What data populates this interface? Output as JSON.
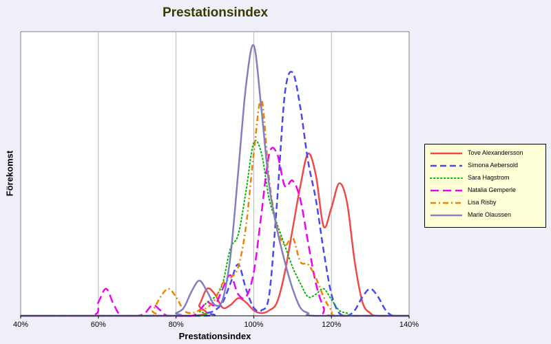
{
  "chart_data": {
    "type": "line",
    "title": "Prestationsindex",
    "xlabel": "Prestationsindex",
    "ylabel": "Förekomst",
    "xlim": [
      40,
      140
    ],
    "ylim": [
      0,
      1.0
    ],
    "x_ticks": [
      "40%",
      "60%",
      "80%",
      "100%",
      "120%",
      "140%"
    ],
    "x_tick_values": [
      40,
      60,
      80,
      100,
      120,
      140
    ],
    "grid": "vertical",
    "legend_position": "right",
    "series": [
      {
        "name": "Tove Alexandersson",
        "color": "#f04848",
        "dash": "solid",
        "points": [
          [
            40,
            0
          ],
          [
            84,
            0
          ],
          [
            86,
            0.04
          ],
          [
            88,
            0.1
          ],
          [
            90,
            0.08
          ],
          [
            92,
            0.03
          ],
          [
            94,
            0.04
          ],
          [
            96,
            0.065
          ],
          [
            98,
            0.05
          ],
          [
            100,
            0.02
          ],
          [
            102,
            0.01
          ],
          [
            104,
            0.02
          ],
          [
            106,
            0.05
          ],
          [
            108,
            0.16
          ],
          [
            110,
            0.32
          ],
          [
            112,
            0.48
          ],
          [
            114,
            0.6
          ],
          [
            116,
            0.52
          ],
          [
            118,
            0.33
          ],
          [
            120,
            0.4
          ],
          [
            122,
            0.49
          ],
          [
            124,
            0.42
          ],
          [
            126,
            0.2
          ],
          [
            128,
            0.05
          ],
          [
            130,
            0.01
          ],
          [
            132,
            0
          ],
          [
            140,
            0
          ]
        ]
      },
      {
        "name": "Simona Aebersold",
        "color": "#4848f0",
        "dash": "dashed",
        "points": [
          [
            40,
            0
          ],
          [
            86,
            0
          ],
          [
            88,
            0.01
          ],
          [
            90,
            0.02
          ],
          [
            92,
            0.05
          ],
          [
            94,
            0.12
          ],
          [
            96,
            0.19
          ],
          [
            98,
            0.1
          ],
          [
            100,
            0.03
          ],
          [
            102,
            0.02
          ],
          [
            104,
            0.08
          ],
          [
            106,
            0.42
          ],
          [
            108,
            0.82
          ],
          [
            110,
            0.9
          ],
          [
            112,
            0.77
          ],
          [
            114,
            0.57
          ],
          [
            116,
            0.43
          ],
          [
            118,
            0.24
          ],
          [
            120,
            0.08
          ],
          [
            122,
            0.01
          ],
          [
            124,
            0
          ],
          [
            126,
            0.02
          ],
          [
            128,
            0.07
          ],
          [
            130,
            0.1
          ],
          [
            132,
            0.07
          ],
          [
            134,
            0.02
          ],
          [
            136,
            0
          ],
          [
            140,
            0
          ]
        ]
      },
      {
        "name": "Sara Hagstrom",
        "color": "#00b400",
        "dash": "dotted",
        "points": [
          [
            40,
            0
          ],
          [
            84,
            0
          ],
          [
            86,
            0.02
          ],
          [
            88,
            0.05
          ],
          [
            90,
            0.07
          ],
          [
            92,
            0.12
          ],
          [
            94,
            0.25
          ],
          [
            96,
            0.3
          ],
          [
            98,
            0.46
          ],
          [
            100,
            0.64
          ],
          [
            102,
            0.6
          ],
          [
            104,
            0.43
          ],
          [
            106,
            0.34
          ],
          [
            108,
            0.26
          ],
          [
            110,
            0.18
          ],
          [
            112,
            0.12
          ],
          [
            114,
            0.07
          ],
          [
            116,
            0.08
          ],
          [
            118,
            0.1
          ],
          [
            120,
            0.06
          ],
          [
            122,
            0.02
          ],
          [
            124,
            0.01
          ],
          [
            126,
            0
          ],
          [
            140,
            0
          ]
        ]
      },
      {
        "name": "Natalia Gemperle",
        "color": "#f000f0",
        "dash": "long-dash",
        "points": [
          [
            40,
            0
          ],
          [
            58,
            0
          ],
          [
            60,
            0.05
          ],
          [
            62,
            0.1
          ],
          [
            64,
            0.04
          ],
          [
            66,
            0
          ],
          [
            70,
            0
          ],
          [
            72,
            0.01
          ],
          [
            74,
            0.04
          ],
          [
            76,
            0.02
          ],
          [
            78,
            0
          ],
          [
            84,
            0
          ],
          [
            86,
            0.02
          ],
          [
            88,
            0.05
          ],
          [
            90,
            0.04
          ],
          [
            92,
            0.1
          ],
          [
            94,
            0.15
          ],
          [
            96,
            0.08
          ],
          [
            98,
            0.07
          ],
          [
            100,
            0.16
          ],
          [
            102,
            0.38
          ],
          [
            104,
            0.6
          ],
          [
            106,
            0.6
          ],
          [
            108,
            0.48
          ],
          [
            110,
            0.5
          ],
          [
            112,
            0.43
          ],
          [
            114,
            0.27
          ],
          [
            116,
            0.12
          ],
          [
            118,
            0.03
          ],
          [
            120,
            0
          ],
          [
            140,
            0
          ]
        ]
      },
      {
        "name": "Lisa Risby",
        "color": "#f08000",
        "dash": "dash-dot",
        "points": [
          [
            40,
            0
          ],
          [
            72,
            0
          ],
          [
            74,
            0.02
          ],
          [
            76,
            0.07
          ],
          [
            78,
            0.1
          ],
          [
            80,
            0.07
          ],
          [
            82,
            0.02
          ],
          [
            84,
            0.01
          ],
          [
            86,
            0.02
          ],
          [
            88,
            0.03
          ],
          [
            90,
            0.06
          ],
          [
            92,
            0.12
          ],
          [
            94,
            0.14
          ],
          [
            96,
            0.18
          ],
          [
            98,
            0.33
          ],
          [
            100,
            0.6
          ],
          [
            102,
            0.8
          ],
          [
            104,
            0.5
          ],
          [
            106,
            0.33
          ],
          [
            108,
            0.26
          ],
          [
            110,
            0.29
          ],
          [
            112,
            0.2
          ],
          [
            114,
            0.19
          ],
          [
            116,
            0.14
          ],
          [
            118,
            0.07
          ],
          [
            120,
            0.02
          ],
          [
            122,
            0
          ],
          [
            140,
            0
          ]
        ]
      },
      {
        "name": "Marie Olaussen",
        "color": "#8080c0",
        "dash": "solid",
        "points": [
          [
            40,
            0
          ],
          [
            78,
            0
          ],
          [
            80,
            0.01
          ],
          [
            82,
            0.03
          ],
          [
            84,
            0.09
          ],
          [
            86,
            0.13
          ],
          [
            88,
            0.09
          ],
          [
            90,
            0.04
          ],
          [
            92,
            0.06
          ],
          [
            94,
            0.22
          ],
          [
            96,
            0.53
          ],
          [
            98,
            0.85
          ],
          [
            100,
            1.0
          ],
          [
            102,
            0.76
          ],
          [
            104,
            0.48
          ],
          [
            106,
            0.32
          ],
          [
            108,
            0.2
          ],
          [
            110,
            0.1
          ],
          [
            112,
            0.03
          ],
          [
            114,
            0.01
          ],
          [
            116,
            0
          ],
          [
            140,
            0
          ]
        ]
      }
    ]
  }
}
